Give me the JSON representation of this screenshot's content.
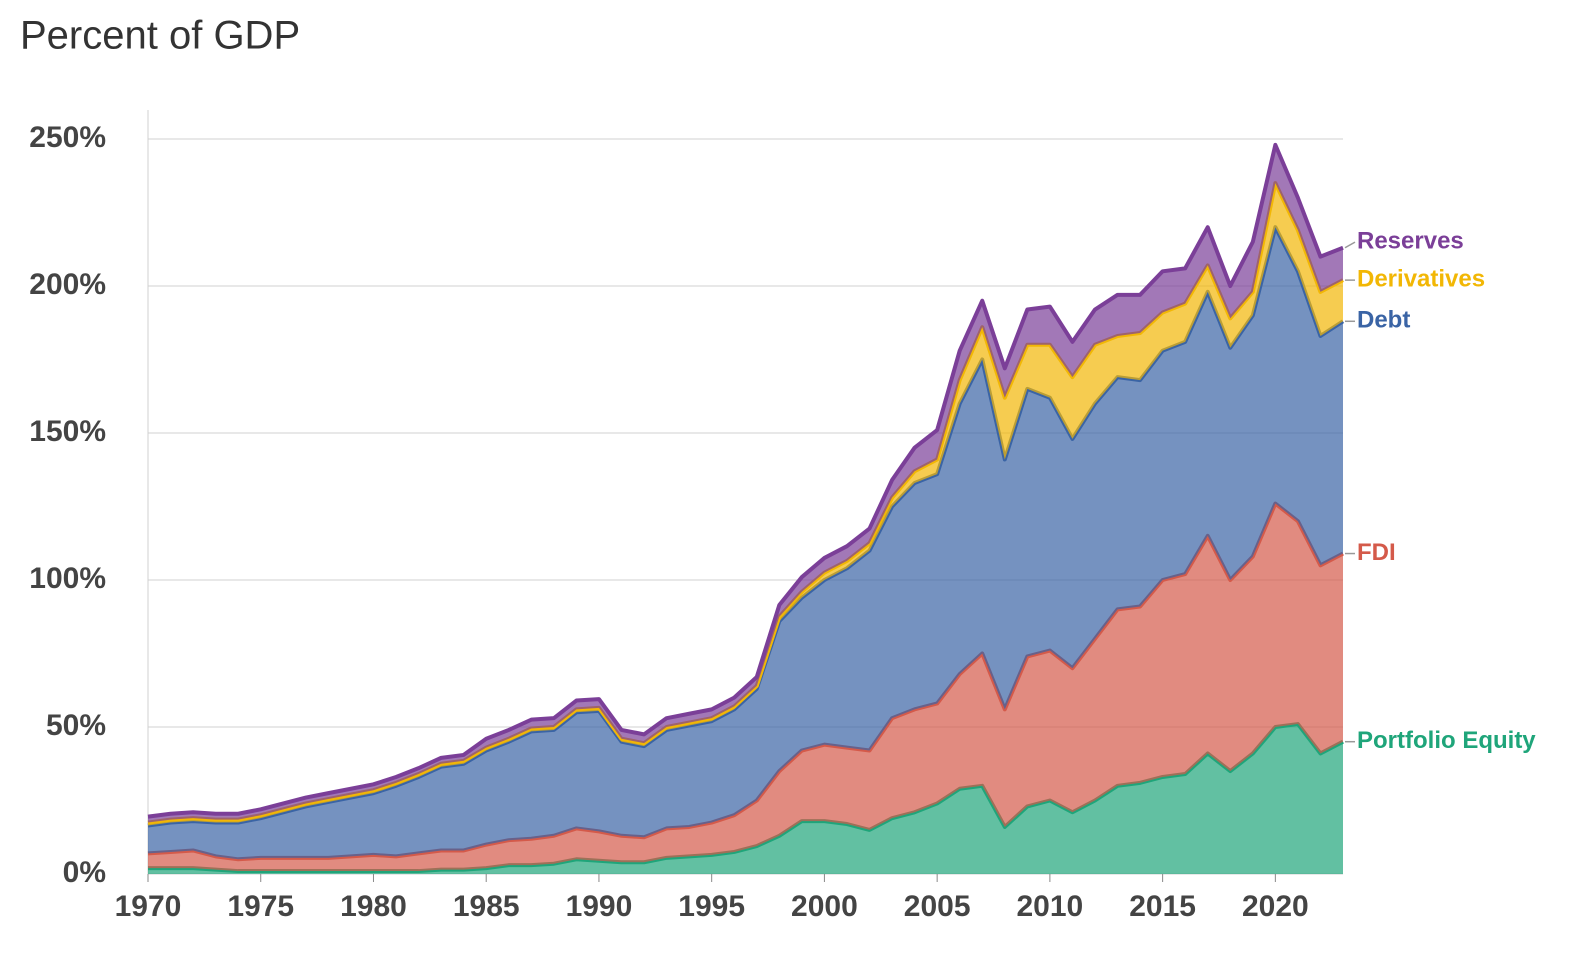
{
  "chart_data": {
    "type": "stacked-area",
    "title": "Percent of GDP",
    "x": [
      1970,
      1971,
      1972,
      1973,
      1974,
      1975,
      1976,
      1977,
      1978,
      1979,
      1980,
      1981,
      1982,
      1983,
      1984,
      1985,
      1986,
      1987,
      1988,
      1989,
      1990,
      1991,
      1992,
      1993,
      1994,
      1995,
      1996,
      1997,
      1998,
      1999,
      2000,
      2001,
      2002,
      2003,
      2004,
      2005,
      2006,
      2007,
      2008,
      2009,
      2010,
      2011,
      2012,
      2013,
      2014,
      2015,
      2016,
      2017,
      2018,
      2019,
      2020,
      2021,
      2022,
      2023
    ],
    "series": [
      {
        "name": "Portfolio Equity",
        "color": "#1fa57a",
        "values": [
          2,
          2,
          2,
          1.5,
          1,
          1,
          1,
          1,
          1,
          1,
          1,
          1,
          1,
          1.5,
          1.5,
          2,
          3,
          3,
          3.5,
          5,
          4.5,
          4,
          4,
          5.5,
          6,
          6.5,
          7.5,
          9.5,
          13,
          18,
          18,
          17,
          15,
          19,
          21,
          24,
          29,
          30,
          16,
          23,
          25,
          21,
          25,
          30,
          31,
          33,
          34,
          41,
          35,
          41,
          50,
          51,
          41,
          45
        ]
      },
      {
        "name": "FDI",
        "color": "#d45a4a",
        "values": [
          5,
          5.5,
          6,
          4.5,
          4,
          4.5,
          4.5,
          4.5,
          4.5,
          5,
          5.5,
          5,
          6,
          6.5,
          6.5,
          8,
          8.5,
          9,
          9.5,
          10.5,
          10,
          9,
          8.5,
          10,
          10,
          11,
          12.5,
          15.5,
          22,
          24,
          26,
          26,
          27,
          34,
          35,
          34,
          39,
          45,
          40,
          51,
          51,
          49,
          55,
          60,
          60,
          67,
          68,
          74,
          65,
          67,
          76,
          69,
          64,
          64
        ]
      },
      {
        "name": "Debt",
        "color": "#3a64a5",
        "values": [
          9.5,
          10,
          10,
          11.5,
          12.5,
          13.5,
          15.5,
          17.5,
          19,
          20,
          21,
          24,
          26,
          28.5,
          29.5,
          32,
          33.5,
          36.5,
          36,
          39.5,
          41,
          32,
          31,
          33.5,
          34.5,
          34.5,
          36,
          38,
          51,
          52,
          56,
          61,
          68,
          72,
          77,
          78,
          92,
          100,
          85,
          91,
          86,
          78,
          80,
          79,
          77,
          78,
          79,
          83,
          79,
          82,
          94,
          85,
          78,
          79
        ]
      },
      {
        "name": "Derivatives",
        "color": "#f2b705",
        "values": [
          1,
          1,
          1,
          1,
          1,
          1,
          1,
          1,
          1,
          1,
          1,
          1,
          1,
          1,
          1,
          1,
          1,
          1,
          1,
          1,
          1,
          1,
          1,
          1,
          1,
          1,
          1,
          1,
          1.5,
          2,
          2.5,
          2.5,
          2.5,
          3,
          4,
          5,
          8,
          11,
          21,
          15,
          18,
          21,
          20,
          14,
          16,
          13,
          13,
          9,
          10,
          8,
          15,
          14,
          15,
          14
        ]
      },
      {
        "name": "Reserves",
        "color": "#7b3f98",
        "values": [
          2,
          2,
          2,
          2,
          2,
          2,
          2,
          2,
          2,
          2,
          2,
          2,
          2,
          2,
          2,
          3,
          3,
          3,
          3,
          3,
          3,
          3,
          3,
          3,
          3,
          3,
          3,
          3,
          4,
          5,
          5,
          5,
          5,
          6,
          8,
          10,
          10,
          9,
          10,
          12,
          13,
          12,
          12,
          14,
          13,
          14,
          12,
          13,
          11,
          17,
          13,
          11,
          12,
          11
        ]
      }
    ],
    "xlim": [
      1970,
      2023
    ],
    "xticks": [
      1970,
      1975,
      1980,
      1985,
      1990,
      1995,
      2000,
      2005,
      2010,
      2015,
      2020
    ],
    "ylim": [
      0,
      250
    ],
    "yticks": [
      {
        "value": 0,
        "label": "0%"
      },
      {
        "value": 50,
        "label": "50%"
      },
      {
        "value": 100,
        "label": "100%"
      },
      {
        "value": 150,
        "label": "150%"
      },
      {
        "value": 200,
        "label": "200%"
      },
      {
        "value": 250,
        "label": "250%"
      }
    ],
    "grid": true
  }
}
